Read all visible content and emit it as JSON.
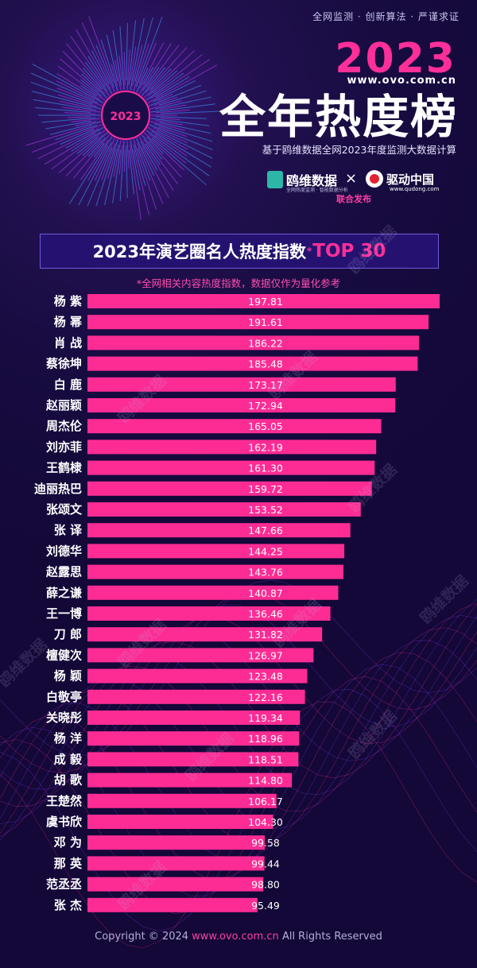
{
  "header": {
    "tagline": "全网监测 · 创新算法 · 严谨求证",
    "year": "2023",
    "site": "www.ovo.com.cn",
    "title": "全年热度榜",
    "subtitle": "基于鸥维数据全网2023年度监测大数据计算",
    "brand1_name": "鸥维数据",
    "brand1_sub": "全网热度监测 · 智能数据分析",
    "times": "×",
    "brand2_name": "驱动中国",
    "brand2_sub": "www.qudong.com",
    "joint": "联合发布",
    "emblem_year": "2023"
  },
  "banner": {
    "title": "2023年演艺圈名人热度指数",
    "star": "*",
    "top": "TOP 30"
  },
  "note": "*全网相关内容热度指数，数据仅作为量化参考",
  "watermark": "鸥维数据",
  "footer": {
    "copyright_prefix": "Copyright © 2024",
    "url": "www.ovo.com.cn",
    "suffix": "All Rights Reserved"
  },
  "colors": {
    "bar": "#fc2c94",
    "accent": "#ff2f9a",
    "background": "#150a3c"
  },
  "chart_data": {
    "type": "bar",
    "orientation": "horizontal",
    "title": "2023年演艺圈名人热度指数",
    "categories": [
      "杨 紫",
      "杨 幂",
      "肖 战",
      "蔡徐坤",
      "白 鹿",
      "赵丽颖",
      "周杰伦",
      "刘亦菲",
      "王鹤棣",
      "迪丽热巴",
      "张颂文",
      "张 译",
      "刘德华",
      "赵露思",
      "薛之谦",
      "王一博",
      "刀 郎",
      "檀健次",
      "杨 颖",
      "白敬亭",
      "关晓彤",
      "杨 洋",
      "成 毅",
      "胡 歌",
      "王楚然",
      "虞书欣",
      "邓 为",
      "那 英",
      "范丞丞",
      "张 杰"
    ],
    "labels": [
      "197.81",
      "191.61",
      "186.22",
      "185.48",
      "173.17",
      "172.94",
      "165.05",
      "162.19",
      "161.30",
      "159.72",
      "153.52",
      "147.66",
      "144.25",
      "143.76",
      "140.87",
      "136.46",
      "131.82",
      "126.97",
      "123.48",
      "122.16",
      "119.34",
      "118.96",
      "118.51",
      "114.80",
      "106.17",
      "104.30",
      "99.58",
      "99.44",
      "98.80",
      "95.49"
    ],
    "values": [
      197.81,
      191.61,
      186.22,
      185.48,
      173.17,
      172.94,
      165.05,
      162.19,
      161.3,
      159.72,
      153.52,
      147.66,
      144.25,
      143.76,
      140.87,
      136.46,
      131.82,
      126.97,
      123.48,
      122.16,
      119.34,
      118.96,
      118.51,
      114.8,
      106.17,
      104.3,
      99.58,
      99.44,
      98.8,
      95.49
    ],
    "xlim": [
      0,
      197.81
    ],
    "grid": false,
    "legend": "none"
  }
}
